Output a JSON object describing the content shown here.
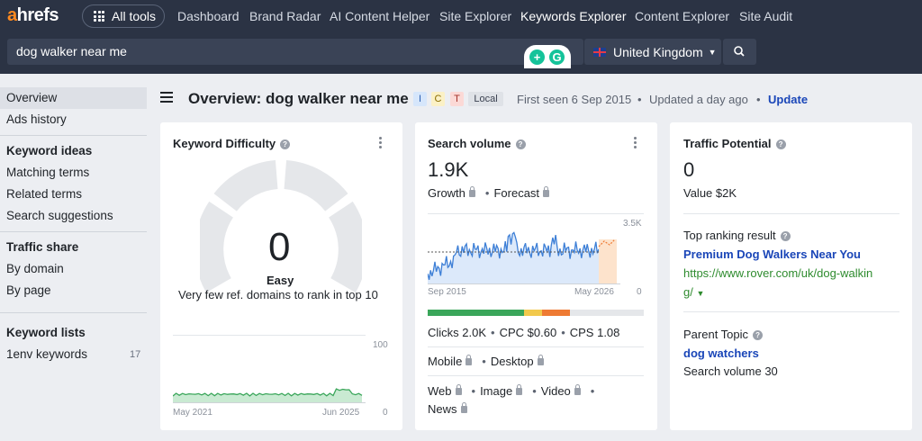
{
  "app": {
    "logo_a": "a",
    "logo_rest": "hrefs"
  },
  "nav": {
    "all_tools": "All tools",
    "items": [
      "Dashboard",
      "Brand Radar",
      "AI Content Helper",
      "Site Explorer",
      "Keywords Explorer",
      "Content Explorer",
      "Site Audit"
    ],
    "active": "Keywords Explorer"
  },
  "search": {
    "query": "dog walker near me",
    "country": "United Kingdom"
  },
  "sidebar": {
    "overview": "Overview",
    "ads_history": "Ads history",
    "keyword_ideas_head": "Keyword ideas",
    "matching_terms": "Matching terms",
    "related_terms": "Related terms",
    "search_suggestions": "Search suggestions",
    "traffic_share_head": "Traffic share",
    "by_domain": "By domain",
    "by_page": "By page",
    "keyword_lists_head": "Keyword lists",
    "list_name": "1env keywords",
    "list_count": "17"
  },
  "header": {
    "title": "Overview: dog walker near me",
    "tags": [
      "I",
      "C",
      "T"
    ],
    "local": "Local",
    "first_seen": "First seen 6 Sep 2015",
    "updated": "Updated a day ago",
    "update_link": "Update"
  },
  "kd": {
    "title": "Keyword Difficulty",
    "value": "0",
    "label": "Easy",
    "desc": "Very few ref. domains to rank in top 10",
    "chart_max": "100",
    "chart_min": "0",
    "x_start": "May 2021",
    "x_end": "Jun 2025"
  },
  "sv": {
    "title": "Search volume",
    "value": "1.9K",
    "growth": "Growth",
    "forecast": "Forecast",
    "chart_max": "3.5K",
    "chart_min": "0",
    "x_start": "Sep 2015",
    "x_end": "May 2026",
    "clicks": "Clicks 2.0K",
    "cpc": "CPC $0.60",
    "cps": "CPS 1.08",
    "mobile": "Mobile",
    "desktop": "Desktop",
    "web": "Web",
    "image": "Image",
    "video": "Video",
    "news": "News"
  },
  "tp": {
    "title": "Traffic Potential",
    "value": "0",
    "value_line": "Value $2K",
    "top_result_head": "Top ranking result",
    "top_result_title": "Premium Dog Walkers Near You",
    "top_result_url1": "https://www.rover.com/uk/dog-walkin",
    "top_result_url2": "g/",
    "parent_topic_head": "Parent Topic",
    "parent_topic": "dog watchers",
    "parent_sv": "Search volume 30"
  },
  "colors": {
    "nav_bg": "#2b3344",
    "accent": "#ff8a1f",
    "link": "#1a46b8",
    "url": "#2e8b2e",
    "chart_blue": "#3d7fd6",
    "chart_green": "#3aa65a"
  }
}
